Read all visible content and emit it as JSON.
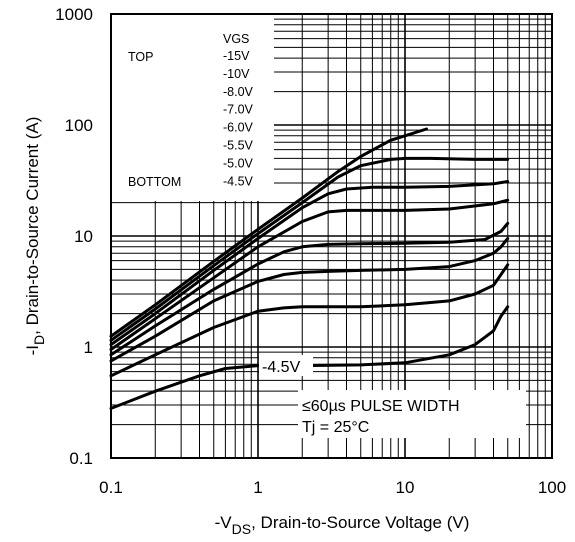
{
  "chart_data": {
    "type": "line",
    "xlabel_prefix": "-V",
    "xlabel_sub": "DS",
    "xlabel_suffix": ", Drain-to-Source Voltage (V)",
    "ylabel_prefix": "-I",
    "ylabel_sub": "D",
    "ylabel_suffix": ", Drain-to-Source Current (A)",
    "xscale": "log",
    "yscale": "log",
    "xlim": [
      0.1,
      100
    ],
    "ylim": [
      0.1,
      1000
    ],
    "x_ticks": [
      "0.1",
      "1",
      "10",
      "100"
    ],
    "y_ticks": [
      "0.1",
      "1",
      "10",
      "100",
      "1000"
    ],
    "grid": true,
    "legend": {
      "top_label": "TOP",
      "bottom_label": "BOTTOM",
      "header": "VGS",
      "entries": [
        "-15V",
        "-10V",
        "-8.0V",
        "-7.0V",
        "-6.0V",
        "-5.5V",
        "-5.0V",
        "-4.5V"
      ]
    },
    "annotations": {
      "curve_label": "-4.5V",
      "pulse": "≤60µs PULSE WIDTH",
      "temp": "Tj = 25°C"
    },
    "series": [
      {
        "x": [
          0.1,
          0.2,
          0.5,
          1,
          2,
          3.5,
          5,
          8,
          10,
          14
        ],
        "y": [
          1.25,
          2.4,
          5.9,
          11.5,
          22,
          38,
          52,
          73,
          80,
          92
        ]
      },
      {
        "x": [
          0.1,
          0.2,
          0.5,
          1,
          2,
          3.5,
          5,
          8,
          10,
          15,
          30,
          50
        ],
        "y": [
          1.15,
          2.2,
          5.4,
          10.5,
          20,
          34,
          43,
          49,
          50,
          50,
          49,
          49
        ]
      },
      {
        "x": [
          0.1,
          0.2,
          0.5,
          1,
          2,
          3,
          4,
          6,
          10,
          20,
          40,
          50
        ],
        "y": [
          1.05,
          2.0,
          4.9,
          9.5,
          18,
          24,
          26.5,
          27.5,
          27.5,
          28,
          29.5,
          31
        ]
      },
      {
        "x": [
          0.1,
          0.2,
          0.5,
          1,
          2,
          3,
          4,
          6,
          10,
          20,
          40,
          50
        ],
        "y": [
          0.95,
          1.8,
          4.2,
          8.0,
          13.5,
          16.5,
          17,
          17,
          17,
          17.5,
          19.5,
          21
        ]
      },
      {
        "x": [
          0.1,
          0.2,
          0.5,
          1,
          1.5,
          2,
          3,
          5,
          10,
          20,
          35,
          45,
          50
        ],
        "y": [
          0.85,
          1.55,
          3.3,
          5.6,
          7.2,
          8.0,
          8.4,
          8.5,
          8.6,
          8.8,
          9.3,
          11,
          13
        ]
      },
      {
        "x": [
          0.1,
          0.2,
          0.5,
          1,
          1.5,
          2,
          3,
          5,
          10,
          20,
          30,
          40,
          45,
          50
        ],
        "y": [
          0.75,
          1.25,
          2.6,
          3.9,
          4.5,
          4.7,
          4.8,
          4.9,
          5.0,
          5.3,
          6.0,
          7.0,
          8.0,
          9.5
        ]
      },
      {
        "x": [
          0.1,
          0.2,
          0.5,
          1,
          1.5,
          2,
          5,
          10,
          20,
          30,
          40,
          45,
          50
        ],
        "y": [
          0.55,
          0.85,
          1.5,
          2.1,
          2.25,
          2.3,
          2.3,
          2.4,
          2.6,
          3.0,
          3.6,
          4.5,
          5.5
        ]
      },
      {
        "x": [
          0.1,
          0.2,
          0.4,
          0.6,
          1,
          2,
          5,
          10,
          20,
          30,
          40,
          45,
          50
        ],
        "y": [
          0.28,
          0.4,
          0.55,
          0.64,
          0.68,
          0.68,
          0.69,
          0.72,
          0.85,
          1.05,
          1.4,
          1.9,
          2.3
        ]
      }
    ]
  }
}
